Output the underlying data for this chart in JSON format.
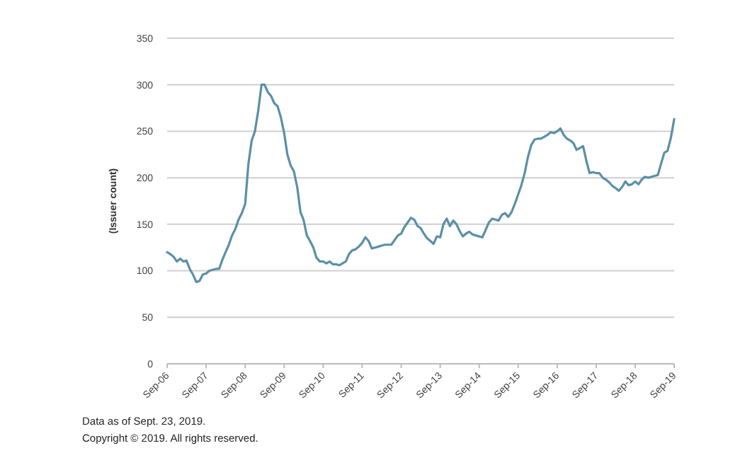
{
  "chart_data": {
    "type": "line",
    "ylabel": "(Issuer count)",
    "annotations": [
      "Data as of Sept. 23, 2019.",
      "Copyright © 2019. All rights reserved."
    ],
    "x": [
      "2006-09",
      "2006-10",
      "2006-11",
      "2006-12",
      "2007-01",
      "2007-02",
      "2007-03",
      "2007-04",
      "2007-05",
      "2007-06",
      "2007-07",
      "2007-08",
      "2007-09",
      "2007-10",
      "2007-11",
      "2007-12",
      "2008-01",
      "2008-02",
      "2008-03",
      "2008-04",
      "2008-05",
      "2008-06",
      "2008-07",
      "2008-08",
      "2008-09",
      "2008-10",
      "2008-11",
      "2008-12",
      "2009-01",
      "2009-02",
      "2009-03",
      "2009-04",
      "2009-05",
      "2009-06",
      "2009-07",
      "2009-08",
      "2009-09",
      "2009-10",
      "2009-11",
      "2009-12",
      "2010-01",
      "2010-02",
      "2010-03",
      "2010-04",
      "2010-05",
      "2010-06",
      "2010-07",
      "2010-08",
      "2010-09",
      "2010-10",
      "2010-11",
      "2010-12",
      "2011-01",
      "2011-02",
      "2011-03",
      "2011-04",
      "2011-05",
      "2011-06",
      "2011-07",
      "2011-08",
      "2011-09",
      "2011-10",
      "2011-11",
      "2011-12",
      "2012-01",
      "2012-02",
      "2012-03",
      "2012-04",
      "2012-05",
      "2012-06",
      "2012-07",
      "2012-08",
      "2012-09",
      "2012-10",
      "2012-11",
      "2012-12",
      "2013-01",
      "2013-02",
      "2013-03",
      "2013-04",
      "2013-05",
      "2013-06",
      "2013-07",
      "2013-08",
      "2013-09",
      "2013-10",
      "2013-11",
      "2013-12",
      "2014-01",
      "2014-02",
      "2014-03",
      "2014-04",
      "2014-05",
      "2014-06",
      "2014-07",
      "2014-08",
      "2014-09",
      "2014-10",
      "2014-11",
      "2014-12",
      "2015-01",
      "2015-02",
      "2015-03",
      "2015-04",
      "2015-05",
      "2015-06",
      "2015-07",
      "2015-08",
      "2015-09",
      "2015-10",
      "2015-11",
      "2015-12",
      "2016-01",
      "2016-02",
      "2016-03",
      "2016-04",
      "2016-05",
      "2016-06",
      "2016-07",
      "2016-08",
      "2016-09",
      "2016-10",
      "2016-11",
      "2016-12",
      "2017-01",
      "2017-02",
      "2017-03",
      "2017-04",
      "2017-05",
      "2017-06",
      "2017-07",
      "2017-08",
      "2017-09",
      "2017-10",
      "2017-11",
      "2017-12",
      "2018-01",
      "2018-02",
      "2018-03",
      "2018-04",
      "2018-05",
      "2018-06",
      "2018-07",
      "2018-08",
      "2018-09",
      "2018-10",
      "2018-11",
      "2018-12",
      "2019-01",
      "2019-02",
      "2019-03",
      "2019-04",
      "2019-05",
      "2019-06",
      "2019-07",
      "2019-08",
      "2019-09"
    ],
    "series": [
      {
        "color": "#5b8fa8",
        "values": [
          120,
          118,
          115,
          110,
          113,
          110,
          111,
          102,
          96,
          88,
          89,
          96,
          97,
          100,
          101,
          102,
          102,
          112,
          120,
          128,
          138,
          145,
          155,
          162,
          172,
          215,
          240,
          250,
          272,
          300,
          300,
          292,
          288,
          280,
          277,
          265,
          248,
          225,
          213,
          207,
          190,
          163,
          155,
          138,
          132,
          125,
          114,
          110,
          110,
          108,
          110,
          107,
          107,
          106,
          108,
          110,
          118,
          122,
          123,
          126,
          130,
          136,
          132,
          124,
          125,
          126,
          127,
          128,
          128,
          128,
          133,
          138,
          140,
          147,
          152,
          157,
          155,
          148,
          146,
          140,
          135,
          132,
          129,
          137,
          136,
          150,
          156,
          148,
          154,
          150,
          143,
          137,
          140,
          142,
          139,
          138,
          137,
          136,
          144,
          152,
          156,
          155,
          154,
          160,
          162,
          158,
          163,
          172,
          182,
          192,
          205,
          222,
          235,
          241,
          242,
          242,
          244,
          246,
          249,
          248,
          250,
          253,
          246,
          242,
          240,
          237,
          230,
          232,
          234,
          218,
          205,
          206,
          205,
          205,
          200,
          198,
          195,
          191,
          189,
          186,
          190,
          196,
          192,
          193,
          196,
          193,
          198,
          201,
          200,
          201,
          202,
          203,
          215,
          227,
          229,
          243,
          263
        ]
      }
    ],
    "xlim": [
      "2006-09",
      "2019-09"
    ],
    "xticks": [
      {
        "value": "2006-09",
        "label": "Sep-06"
      },
      {
        "value": "2007-09",
        "label": "Sep-07"
      },
      {
        "value": "2008-09",
        "label": "Sep-08"
      },
      {
        "value": "2009-09",
        "label": "Sep-09"
      },
      {
        "value": "2010-09",
        "label": "Sep-10"
      },
      {
        "value": "2011-09",
        "label": "Sep-11"
      },
      {
        "value": "2012-09",
        "label": "Sep-12"
      },
      {
        "value": "2013-09",
        "label": "Sep-13"
      },
      {
        "value": "2014-09",
        "label": "Sep-14"
      },
      {
        "value": "2015-09",
        "label": "Sep-15"
      },
      {
        "value": "2016-09",
        "label": "Sep-16"
      },
      {
        "value": "2017-09",
        "label": "Sep-17"
      },
      {
        "value": "2018-09",
        "label": "Sep-18"
      },
      {
        "value": "2019-09",
        "label": "Sep-19"
      }
    ],
    "ylim": [
      0,
      350
    ],
    "yticks": [
      0,
      50,
      100,
      150,
      200,
      250,
      300,
      350
    ],
    "grid": "y",
    "marker": "none",
    "line_style": "solid"
  }
}
